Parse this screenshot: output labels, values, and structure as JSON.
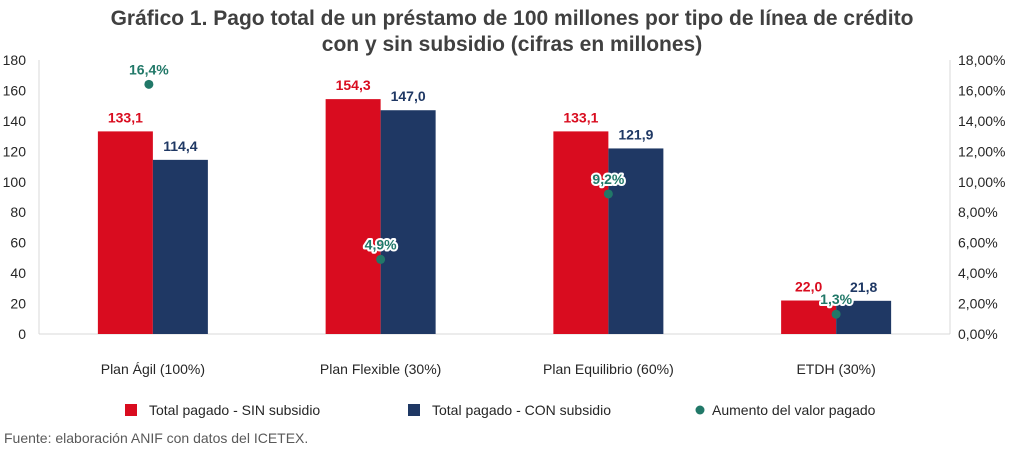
{
  "chart_data": {
    "type": "bar",
    "title_lines": [
      "Gráfico 1. Pago total de un préstamo de 100 millones por tipo de línea de crédito",
      "con y sin subsidio (cifras en millones)"
    ],
    "categories": [
      "Plan Ágil (100%)",
      "Plan Flexible (30%)",
      "Plan Equilibrio (60%)",
      "ETDH (30%)"
    ],
    "series": [
      {
        "name": "Total pagado - SIN subsidio",
        "type": "bar",
        "axis": "left",
        "color": "#D90C1F",
        "values": [
          133.1,
          154.3,
          133.1,
          22.0
        ],
        "labels": [
          "133,1",
          "154,3",
          "133,1",
          "22,0"
        ]
      },
      {
        "name": "Total pagado - CON subsidio",
        "type": "bar",
        "axis": "left",
        "color": "#1F3864",
        "values": [
          114.4,
          147.0,
          121.9,
          21.8
        ],
        "labels": [
          "114,4",
          "147,0",
          "121,9",
          "21,8"
        ]
      },
      {
        "name": "Aumento del valor pagado",
        "type": "scatter",
        "axis": "right",
        "color": "#217868",
        "values": [
          16.4,
          4.9,
          9.2,
          1.3
        ],
        "labels": [
          "16,4%",
          "4,9%",
          "9,2%",
          "1,3%"
        ]
      }
    ],
    "y_left": {
      "range": [
        0,
        180
      ],
      "ticks": [
        0,
        20,
        40,
        60,
        80,
        100,
        120,
        140,
        160,
        180
      ],
      "tick_labels": [
        "0",
        "20",
        "40",
        "60",
        "80",
        "100",
        "120",
        "140",
        "160",
        "180"
      ]
    },
    "y_right": {
      "range": [
        0,
        18
      ],
      "ticks": [
        0,
        2,
        4,
        6,
        8,
        10,
        12,
        14,
        16,
        18
      ],
      "tick_labels": [
        "0,00%",
        "2,00%",
        "4,00%",
        "6,00%",
        "8,00%",
        "10,00%",
        "12,00%",
        "14,00%",
        "16,00%",
        "18,00%"
      ]
    },
    "grid": false,
    "legend_position": "bottom",
    "source": "Fuente: elaboración ANIF con datos del ICETEX."
  }
}
